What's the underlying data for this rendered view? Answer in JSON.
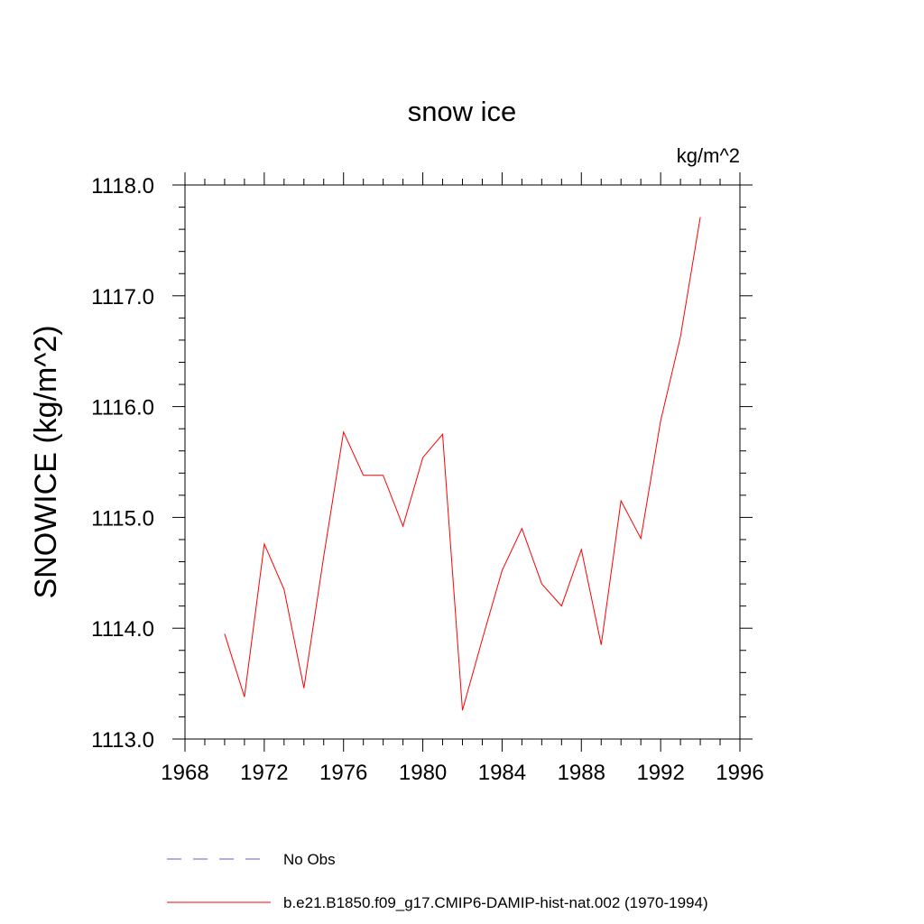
{
  "chart_data": {
    "type": "line",
    "title": "snow ice",
    "units": "kg/m^2",
    "ylabel": "SNOWICE  (kg/m^2)",
    "xlabel": "",
    "xlim": [
      1968,
      1996
    ],
    "ylim": [
      1113.0,
      1118.0
    ],
    "x_ticks": [
      1968,
      1972,
      1976,
      1980,
      1984,
      1988,
      1992,
      1996
    ],
    "x_tick_labels": [
      "1968",
      "1972",
      "1976",
      "1980",
      "1984",
      "1988",
      "1992",
      "1996"
    ],
    "y_ticks": [
      1113.0,
      1114.0,
      1115.0,
      1116.0,
      1117.0,
      1118.0
    ],
    "y_tick_labels": [
      "1113.0",
      "1114.0",
      "1115.0",
      "1116.0",
      "1117.0",
      "1118.0"
    ],
    "grid": false,
    "legend_position": "bottom",
    "series": [
      {
        "name": "b.e21.B1850.f09_g17.CMIP6-DAMIP-hist-nat.002 (1970-1994)",
        "color": "#ff0000",
        "style": "solid",
        "x": [
          1970,
          1971,
          1972,
          1973,
          1974,
          1975,
          1976,
          1977,
          1978,
          1979,
          1980,
          1981,
          1982,
          1983,
          1984,
          1985,
          1986,
          1987,
          1988,
          1989,
          1990,
          1991,
          1992,
          1993,
          1994
        ],
        "y": [
          1113.95,
          1113.38,
          1114.76,
          1114.35,
          1113.46,
          1114.65,
          1115.77,
          1115.38,
          1115.38,
          1114.92,
          1115.54,
          1115.75,
          1113.26,
          1113.9,
          1114.52,
          1114.9,
          1114.4,
          1114.2,
          1114.71,
          1113.85,
          1115.15,
          1114.81,
          1115.87,
          1116.63,
          1117.71
        ]
      }
    ],
    "legend": [
      {
        "label": "No Obs",
        "color": "#6a5acd",
        "style": "dashed"
      },
      {
        "label": "b.e21.B1850.f09_g17.CMIP6-DAMIP-hist-nat.002 (1970-1994)",
        "color": "#ff0000",
        "style": "solid"
      }
    ]
  }
}
